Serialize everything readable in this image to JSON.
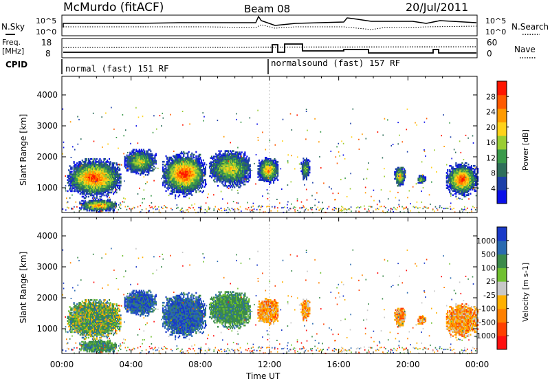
{
  "header": {
    "title": "McMurdo (fitACF)",
    "beam": "Beam 08",
    "date": "20/Jul/2011"
  },
  "top_panels": {
    "nsky_label": "N.Sky",
    "nsearch_label": "N.Search",
    "nsky_ticks": [
      "10^5",
      "10^0"
    ],
    "nsearch_ticks": [
      "10^5",
      "10^0"
    ],
    "freq_label": "Freq.",
    "freq_unit": "[MHz]",
    "freq_ticks": [
      "18",
      "8"
    ],
    "nave_label": "Nave",
    "nave_ticks": [
      "60",
      "0"
    ],
    "cpid_label": "CPID",
    "modes": [
      {
        "label": "normal (fast) 151 RF",
        "start_hour": 0
      },
      {
        "label": "normalsound (fast) 157 RF",
        "start_hour": 12
      }
    ]
  },
  "chart_data": [
    {
      "type": "heatmap",
      "name": "power",
      "ylabel": "Slant Range [km]",
      "xlim": [
        0,
        24
      ],
      "ylim": [
        200,
        4600
      ],
      "yticks": [
        "1000",
        "2000",
        "3000",
        "4000"
      ],
      "colorbar": {
        "label": "Power [dB]",
        "ticks": [
          "4",
          "8",
          "12",
          "16",
          "20",
          "24",
          "28"
        ],
        "colors": [
          "#0a10e8",
          "#1c3fa8",
          "#2e6e5a",
          "#3a9a4a",
          "#9acd32",
          "#ffd21a",
          "#ff9a00",
          "#ff5a00",
          "#ff1500"
        ]
      }
    },
    {
      "type": "heatmap",
      "name": "velocity",
      "ylabel": "Slant Range [km]",
      "xlabel": "Time UT",
      "xlim": [
        0,
        24
      ],
      "ylim": [
        200,
        4600
      ],
      "yticks": [
        "1000",
        "2000",
        "3000",
        "4000"
      ],
      "xticks": [
        "00:00",
        "04:00",
        "08:00",
        "12:00",
        "16:00",
        "20:00",
        "00:00"
      ],
      "colorbar": {
        "label": "Velocity [m s-1]",
        "ticks": [
          "1000",
          "500",
          "100",
          "25",
          "-25",
          "-100",
          "-500",
          "-1000"
        ],
        "colors": [
          "#1a3ac8",
          "#2a6ab0",
          "#3b8a4a",
          "#70c030",
          "#c8c8c8",
          "#ffb000",
          "#ff8000",
          "#ff4000",
          "#ff1010"
        ]
      }
    }
  ],
  "echo_regions": [
    {
      "t0": 0.3,
      "t1": 3.4,
      "r0": 650,
      "r1": 1950,
      "core": 0.85,
      "vel": "mixed-green"
    },
    {
      "t0": 3.6,
      "t1": 5.4,
      "r0": 1400,
      "r1": 2250,
      "core": 0.5,
      "vel": "blue"
    },
    {
      "t0": 5.8,
      "t1": 8.3,
      "r0": 700,
      "r1": 2150,
      "core": 0.9,
      "vel": "blue"
    },
    {
      "t0": 8.5,
      "t1": 10.9,
      "r0": 1000,
      "r1": 2200,
      "core": 0.55,
      "vel": "green"
    },
    {
      "t0": 11.3,
      "t1": 12.5,
      "r0": 1100,
      "r1": 2000,
      "core": 0.7,
      "vel": "orange"
    },
    {
      "t0": 13.8,
      "t1": 14.3,
      "r0": 1250,
      "r1": 1950,
      "core": 0.4,
      "vel": "orange"
    },
    {
      "t0": 19.2,
      "t1": 19.8,
      "r0": 1000,
      "r1": 1700,
      "core": 0.6,
      "vel": "orange"
    },
    {
      "t0": 20.5,
      "t1": 21.0,
      "r0": 1100,
      "r1": 1400,
      "core": 0.4,
      "vel": "orange"
    },
    {
      "t0": 22.2,
      "t1": 24.0,
      "r0": 700,
      "r1": 1800,
      "core": 0.85,
      "vel": "orange"
    },
    {
      "t0": 1.0,
      "t1": 3.2,
      "r0": 200,
      "r1": 620,
      "core": 0.7,
      "vel": "green"
    }
  ]
}
